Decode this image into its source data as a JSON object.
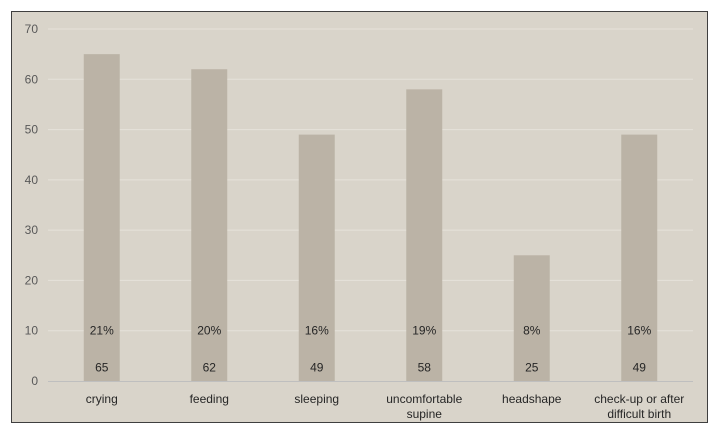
{
  "chart_data": {
    "type": "bar",
    "categories": [
      [
        "crying"
      ],
      [
        "feeding"
      ],
      [
        "sleeping"
      ],
      [
        "uncomfortable",
        "supine"
      ],
      [
        "headshape"
      ],
      [
        "check-up or after",
        "difficult birth"
      ]
    ],
    "values": [
      65,
      62,
      49,
      58,
      25,
      49
    ],
    "percent_labels": [
      "21%",
      "20%",
      "16%",
      "19%",
      "8%",
      "16%"
    ],
    "value_labels": [
      "65",
      "62",
      "49",
      "58",
      "25",
      "49"
    ],
    "ylim": [
      0,
      70
    ],
    "yticks": [
      0,
      10,
      20,
      30,
      40,
      50,
      60,
      70
    ],
    "grid": true,
    "legend": "none",
    "colors": {
      "background": "#d9d4ca",
      "bar": "#bbb3a6",
      "gridline": "#e6e2da",
      "axis": "#bfbfbf"
    }
  }
}
